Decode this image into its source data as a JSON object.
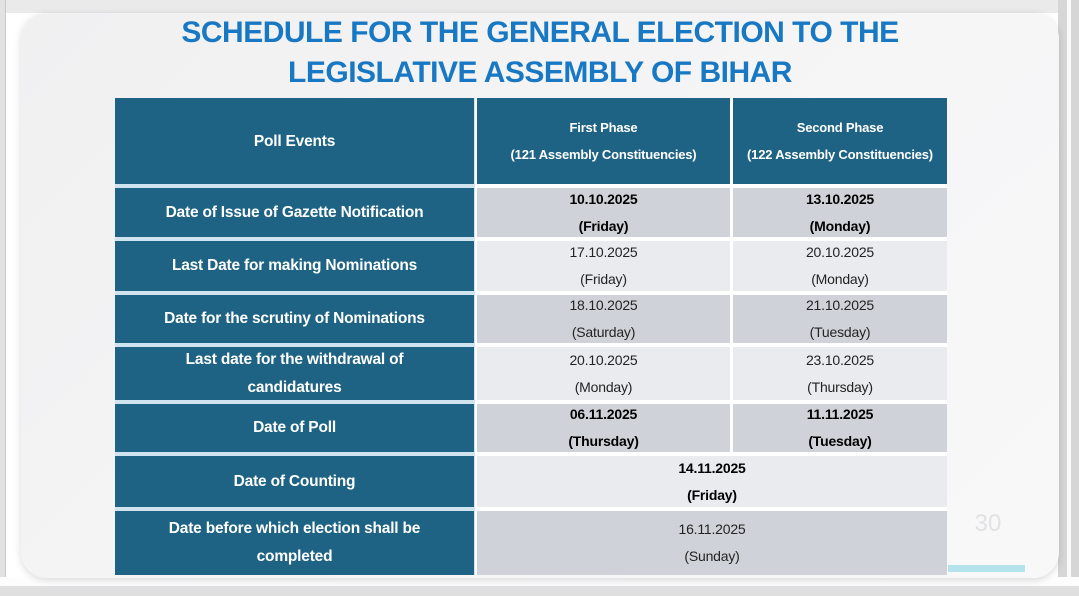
{
  "slide": {
    "title_lines": [
      "SCHEDULE FOR THE GENERAL ELECTION TO THE",
      "LEGISLATIVE ASSEMBLY OF BIHAR"
    ],
    "page_number": "30"
  },
  "table": {
    "header": {
      "col1": "Poll Events",
      "col2": [
        "First Phase",
        "(121 Assembly Constituencies)"
      ],
      "col3": [
        "Second Phase",
        "(122 Assembly Constituencies)"
      ]
    },
    "rows": [
      {
        "event": [
          "Date of Issue of Gazette Notification"
        ],
        "first": [
          "10.10.2025",
          "(Friday)"
        ],
        "second": [
          "13.10.2025",
          "(Monday)"
        ]
      },
      {
        "event": [
          "Last Date for making Nominations"
        ],
        "first": [
          "17.10.2025",
          "(Friday)"
        ],
        "second": [
          "20.10.2025",
          "(Monday)"
        ]
      },
      {
        "event": [
          "Date for the scrutiny of Nominations"
        ],
        "first": [
          "18.10.2025",
          "(Saturday)"
        ],
        "second": [
          "21.10.2025",
          "(Tuesday)"
        ]
      },
      {
        "event": [
          "Last date for the withdrawal of",
          "candidatures"
        ],
        "first": [
          "20.10.2025",
          "(Monday)"
        ],
        "second": [
          "23.10.2025",
          "(Thursday)"
        ]
      },
      {
        "event": [
          "Date of Poll"
        ],
        "first": [
          "06.11.2025",
          "(Thursday)"
        ],
        "second": [
          "11.11.2025",
          "(Tuesday)"
        ]
      },
      {
        "event": [
          "Date of Counting"
        ],
        "merged": [
          "14.11.2025",
          "(Friday)"
        ]
      },
      {
        "event": [
          "Date before which election shall be",
          "completed"
        ],
        "merged": [
          "16.11.2025",
          "(Sunday)"
        ]
      }
    ]
  },
  "colors": {
    "title_blue": "#1878c3",
    "header_teal": "#1e6384",
    "row_dark_gray": "#cfd3d9",
    "row_light_gray": "#e9ebee",
    "accent_cyan": "#b5e3ec"
  }
}
